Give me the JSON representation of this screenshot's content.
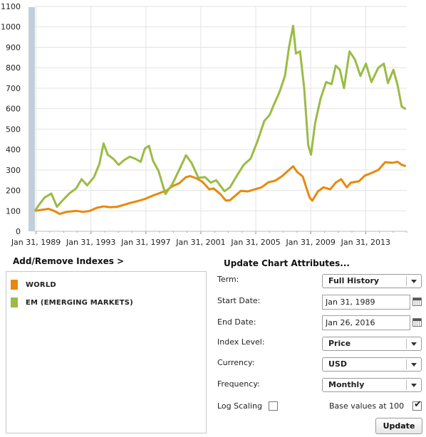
{
  "chart_data": {
    "type": "line",
    "x_tick_labels": [
      "Jan 31, 1989",
      "Jan 31, 1993",
      "Jan 31, 1997",
      "Jan 31, 2001",
      "Jan 31, 2005",
      "Jan 31, 2009",
      "Jan 31, 2013"
    ],
    "x_range": [
      1989.0,
      2016.07
    ],
    "ylim": [
      0,
      1100
    ],
    "y_ticks": [
      0,
      100,
      200,
      300,
      400,
      500,
      600,
      700,
      800,
      900,
      1000,
      1100
    ],
    "grid": true,
    "series": [
      {
        "name": "WORLD",
        "color": "#e8890c",
        "points": [
          [
            1989.0,
            100
          ],
          [
            1989.5,
            105
          ],
          [
            1990.0,
            110
          ],
          [
            1990.4,
            100
          ],
          [
            1990.8,
            85
          ],
          [
            1991.3,
            95
          ],
          [
            1992.0,
            100
          ],
          [
            1992.5,
            95
          ],
          [
            1993.0,
            100
          ],
          [
            1993.5,
            115
          ],
          [
            1994.0,
            122
          ],
          [
            1994.5,
            118
          ],
          [
            1995.0,
            120
          ],
          [
            1995.5,
            130
          ],
          [
            1996.0,
            140
          ],
          [
            1996.5,
            148
          ],
          [
            1997.0,
            158
          ],
          [
            1997.6,
            175
          ],
          [
            1998.0,
            185
          ],
          [
            1998.6,
            200
          ],
          [
            1999.0,
            220
          ],
          [
            1999.5,
            235
          ],
          [
            2000.0,
            265
          ],
          [
            2000.3,
            270
          ],
          [
            2000.8,
            258
          ],
          [
            2001.2,
            242
          ],
          [
            2001.7,
            205
          ],
          [
            2002.0,
            210
          ],
          [
            2002.5,
            182
          ],
          [
            2002.9,
            150
          ],
          [
            2003.2,
            152
          ],
          [
            2003.6,
            175
          ],
          [
            2004.0,
            198
          ],
          [
            2004.5,
            195
          ],
          [
            2005.0,
            205
          ],
          [
            2005.5,
            215
          ],
          [
            2006.0,
            240
          ],
          [
            2006.5,
            248
          ],
          [
            2007.0,
            270
          ],
          [
            2007.5,
            300
          ],
          [
            2007.8,
            318
          ],
          [
            2008.1,
            290
          ],
          [
            2008.5,
            268
          ],
          [
            2008.8,
            205
          ],
          [
            2009.0,
            165
          ],
          [
            2009.2,
            150
          ],
          [
            2009.6,
            195
          ],
          [
            2010.0,
            215
          ],
          [
            2010.5,
            205
          ],
          [
            2010.9,
            238
          ],
          [
            2011.3,
            255
          ],
          [
            2011.7,
            215
          ],
          [
            2012.0,
            238
          ],
          [
            2012.6,
            245
          ],
          [
            2013.0,
            272
          ],
          [
            2013.5,
            285
          ],
          [
            2014.0,
            300
          ],
          [
            2014.5,
            338
          ],
          [
            2015.0,
            335
          ],
          [
            2015.4,
            340
          ],
          [
            2015.7,
            325
          ],
          [
            2016.0,
            318
          ]
        ]
      },
      {
        "name": "EM (EMERGING MARKETS)",
        "color": "#9bbb45",
        "points": [
          [
            1989.0,
            100
          ],
          [
            1989.3,
            130
          ],
          [
            1989.7,
            165
          ],
          [
            1990.2,
            185
          ],
          [
            1990.6,
            120
          ],
          [
            1991.0,
            150
          ],
          [
            1991.5,
            185
          ],
          [
            1992.0,
            210
          ],
          [
            1992.4,
            255
          ],
          [
            1992.8,
            225
          ],
          [
            1993.3,
            265
          ],
          [
            1993.7,
            330
          ],
          [
            1994.0,
            430
          ],
          [
            1994.3,
            375
          ],
          [
            1994.7,
            355
          ],
          [
            1995.1,
            325
          ],
          [
            1995.5,
            348
          ],
          [
            1995.9,
            365
          ],
          [
            1996.3,
            355
          ],
          [
            1996.7,
            340
          ],
          [
            1997.0,
            405
          ],
          [
            1997.3,
            418
          ],
          [
            1997.6,
            345
          ],
          [
            1998.0,
            295
          ],
          [
            1998.5,
            182
          ],
          [
            1999.0,
            230
          ],
          [
            1999.5,
            300
          ],
          [
            2000.0,
            372
          ],
          [
            2000.4,
            335
          ],
          [
            2000.9,
            262
          ],
          [
            2001.4,
            265
          ],
          [
            2001.8,
            238
          ],
          [
            2002.2,
            250
          ],
          [
            2002.8,
            196
          ],
          [
            2003.2,
            215
          ],
          [
            2003.7,
            272
          ],
          [
            2004.2,
            325
          ],
          [
            2004.7,
            355
          ],
          [
            2005.2,
            440
          ],
          [
            2005.7,
            540
          ],
          [
            2006.1,
            570
          ],
          [
            2006.4,
            620
          ],
          [
            2006.8,
            680
          ],
          [
            2007.2,
            760
          ],
          [
            2007.5,
            900
          ],
          [
            2007.8,
            1005
          ],
          [
            2008.0,
            870
          ],
          [
            2008.3,
            880
          ],
          [
            2008.6,
            700
          ],
          [
            2008.9,
            420
          ],
          [
            2009.1,
            375
          ],
          [
            2009.4,
            530
          ],
          [
            2009.8,
            650
          ],
          [
            2010.2,
            730
          ],
          [
            2010.6,
            720
          ],
          [
            2010.9,
            810
          ],
          [
            2011.2,
            790
          ],
          [
            2011.5,
            700
          ],
          [
            2011.9,
            880
          ],
          [
            2012.3,
            840
          ],
          [
            2012.7,
            760
          ],
          [
            2013.1,
            820
          ],
          [
            2013.5,
            730
          ],
          [
            2014.0,
            800
          ],
          [
            2014.4,
            820
          ],
          [
            2014.7,
            725
          ],
          [
            2015.1,
            790
          ],
          [
            2015.4,
            715
          ],
          [
            2015.7,
            610
          ],
          [
            2016.0,
            598
          ]
        ]
      }
    ]
  },
  "controls": {
    "add_remove": "Add/Remove Indexes >",
    "update_attributes": "Update Chart Attributes...",
    "term_label": "Term:",
    "term_value": "Full History",
    "start_label": "Start Date:",
    "start_value": "Jan 31, 1989",
    "end_label": "End Date:",
    "end_value": "Jan 26, 2016",
    "index_level_label": "Index Level:",
    "index_level_value": "Price",
    "currency_label": "Currency:",
    "currency_value": "USD",
    "frequency_label": "Frequency:",
    "frequency_value": "Monthly",
    "log_scaling_label": "Log Scaling",
    "log_scaling_checked": false,
    "base_values_label": "Base values at 100",
    "base_values_checked": true,
    "update_button": "Update"
  },
  "legend": {
    "items": [
      {
        "label": "WORLD",
        "color": "#e8890c"
      },
      {
        "label": "EM (EMERGING MARKETS)",
        "color": "#9bbb45"
      }
    ]
  }
}
